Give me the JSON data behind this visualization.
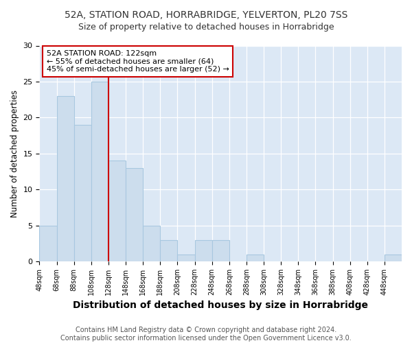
{
  "title1": "52A, STATION ROAD, HORRABRIDGE, YELVERTON, PL20 7SS",
  "title2": "Size of property relative to detached houses in Horrabridge",
  "xlabel": "Distribution of detached houses by size in Horrabridge",
  "ylabel": "Number of detached properties",
  "footnote": "Contains HM Land Registry data © Crown copyright and database right 2024.\nContains public sector information licensed under the Open Government Licence v3.0.",
  "bar_left_edges": [
    48,
    68,
    88,
    108,
    128,
    148,
    168,
    188,
    208,
    228,
    248,
    268,
    288,
    308,
    328,
    348,
    368,
    388,
    408,
    428,
    448
  ],
  "bar_heights": [
    5,
    23,
    19,
    25,
    14,
    13,
    5,
    3,
    1,
    3,
    3,
    0,
    1,
    0,
    0,
    0,
    0,
    0,
    0,
    0,
    1
  ],
  "bin_width": 20,
  "bar_color": "#ccdded",
  "bar_edge_color": "#a8c8e0",
  "property_line_x": 128,
  "annotation_text": "52A STATION ROAD: 122sqm\n← 55% of detached houses are smaller (64)\n45% of semi-detached houses are larger (52) →",
  "annotation_box_color": "#ffffff",
  "annotation_border_color": "#cc0000",
  "vline_color": "#cc0000",
  "ylim": [
    0,
    30
  ],
  "yticks": [
    0,
    5,
    10,
    15,
    20,
    25,
    30
  ],
  "xtick_labels": [
    "48sqm",
    "68sqm",
    "88sqm",
    "108sqm",
    "128sqm",
    "148sqm",
    "168sqm",
    "188sqm",
    "208sqm",
    "228sqm",
    "248sqm",
    "268sqm",
    "288sqm",
    "308sqm",
    "328sqm",
    "348sqm",
    "368sqm",
    "388sqm",
    "408sqm",
    "428sqm",
    "448sqm"
  ],
  "background_color": "#ffffff",
  "plot_bg_color": "#dce8f5",
  "grid_color": "#ffffff",
  "title1_fontsize": 10,
  "title2_fontsize": 9,
  "xlabel_fontsize": 10,
  "ylabel_fontsize": 8.5,
  "annotation_fontsize": 8,
  "tick_fontsize": 7,
  "footnote_fontsize": 7
}
